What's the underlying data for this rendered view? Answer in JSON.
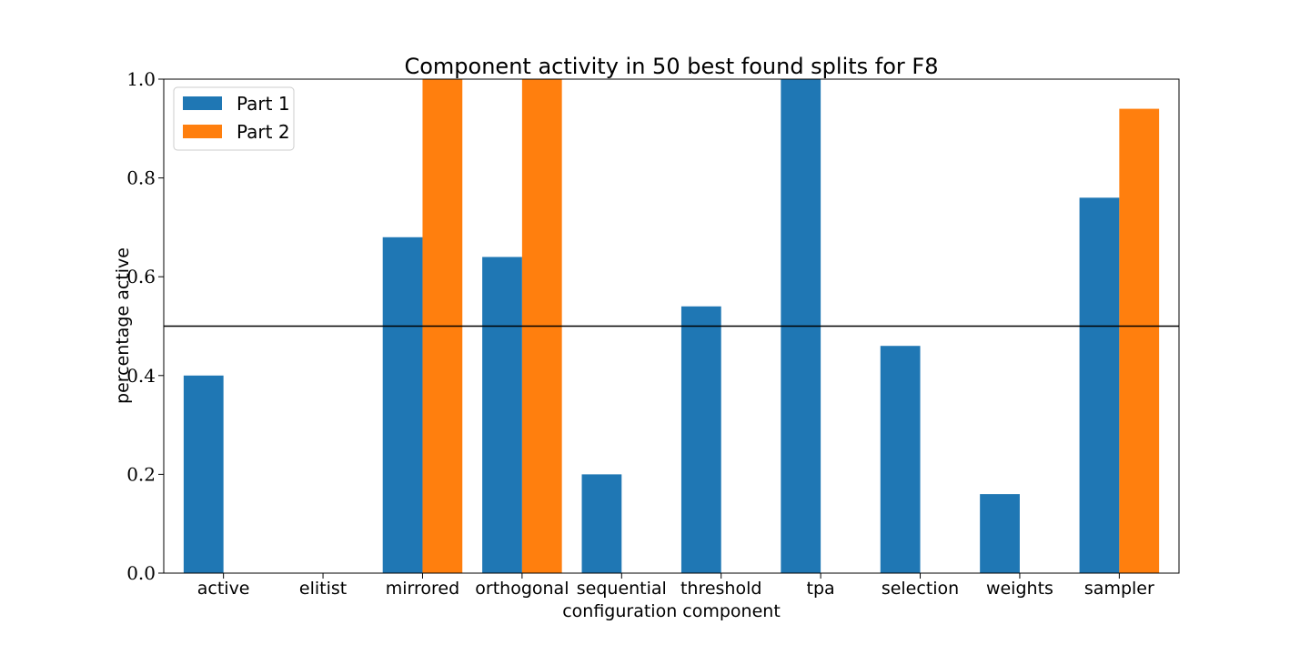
{
  "chart_data": {
    "type": "bar",
    "title": "Component activity in 50 best found splits for F8",
    "xlabel": "configuration component",
    "ylabel": "percentage active",
    "ylim": [
      0,
      1.0
    ],
    "yticks": [
      "0.0",
      "0.2",
      "0.4",
      "0.6",
      "0.8",
      "1.0"
    ],
    "categories": [
      "active",
      "elitist",
      "mirrored",
      "orthogonal",
      "sequential",
      "threshold",
      "tpa",
      "selection",
      "weights",
      "sampler"
    ],
    "series": [
      {
        "name": "Part 1",
        "color": "#1f77b4",
        "values": [
          0.4,
          0.0,
          0.68,
          0.64,
          0.2,
          0.54,
          1.0,
          0.46,
          0.16,
          0.76
        ]
      },
      {
        "name": "Part 2",
        "color": "#ff7f0e",
        "values": [
          0.0,
          0.0,
          1.0,
          1.0,
          0.0,
          0.0,
          0.0,
          0.0,
          0.0,
          0.94
        ]
      }
    ],
    "reference_line": 0.5,
    "grid": false,
    "legend_position": "top-left"
  }
}
